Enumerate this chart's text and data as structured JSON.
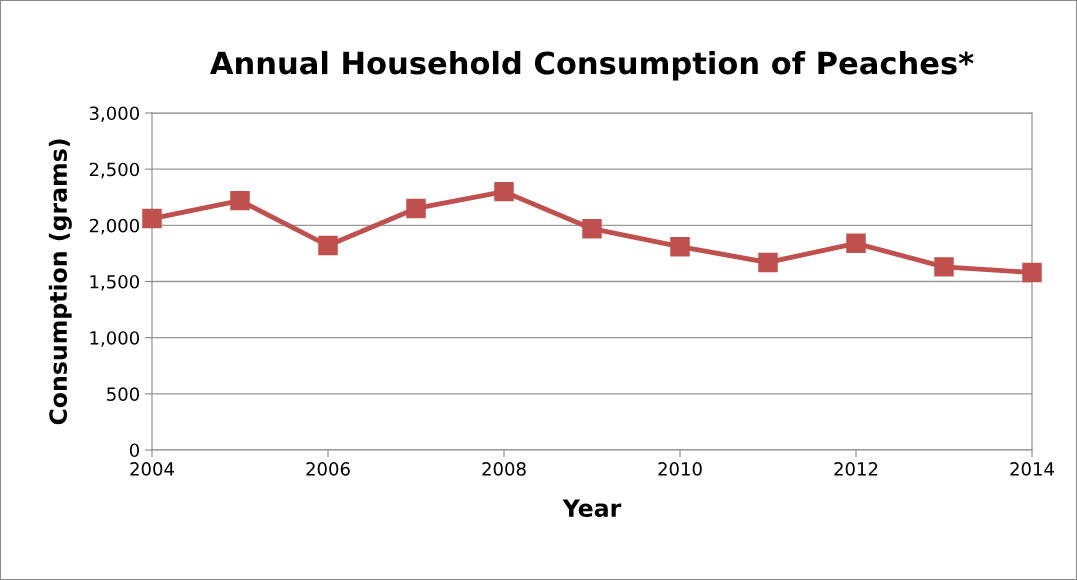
{
  "chart_data": {
    "type": "line",
    "title": "Annual Household Consumption of Peaches*",
    "xlabel": "Year",
    "ylabel": "Consumption (grams)",
    "x": [
      2004,
      2005,
      2006,
      2007,
      2008,
      2009,
      2010,
      2011,
      2012,
      2013,
      2014
    ],
    "series": [
      {
        "color": "#c0504d",
        "values": [
          2060,
          2220,
          1820,
          2150,
          2300,
          1970,
          1810,
          1670,
          1840,
          1630,
          1580
        ]
      }
    ],
    "xlim": [
      2004,
      2014
    ],
    "xticks": [
      2004,
      2006,
      2008,
      2010,
      2012,
      2014
    ],
    "ylim": [
      0,
      3000
    ],
    "yticks": [
      0,
      500,
      {
        "value": 1000,
        "label": "1,000"
      },
      {
        "value": 1500,
        "label": "1,500"
      },
      {
        "value": 2000,
        "label": "2,000"
      },
      {
        "value": 2500,
        "label": "2,500"
      },
      {
        "value": 3000,
        "label": "3,000"
      }
    ],
    "grid": "y",
    "marker": "square",
    "line_style": "solid",
    "legend": false
  }
}
